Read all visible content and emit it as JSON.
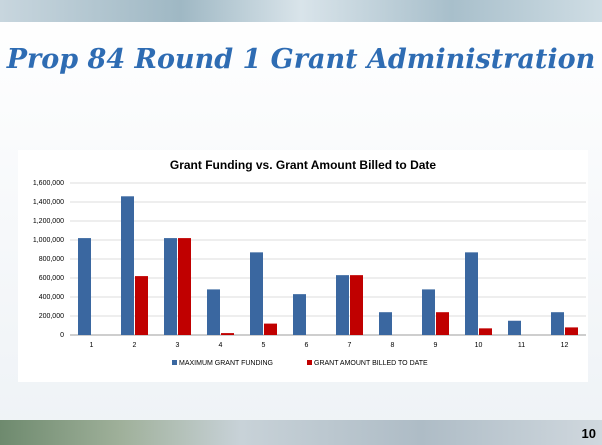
{
  "slide": {
    "title": "Prop 84 Round 1 Grant Administration",
    "page_number": 10
  },
  "chart_data": {
    "type": "bar",
    "title": "Grant Funding vs. Grant Amount  Billed to Date",
    "categories": [
      "1",
      "2",
      "3",
      "4",
      "5",
      "6",
      "7",
      "8",
      "9",
      "10",
      "11",
      "12"
    ],
    "series": [
      {
        "name": "MAXIMUM GRANT FUNDING",
        "color": "#3a67a0",
        "values": [
          1020000,
          1460000,
          1020000,
          480000,
          870000,
          430000,
          630000,
          240000,
          480000,
          870000,
          150000,
          240000
        ]
      },
      {
        "name": "GRANT AMOUNT BILLED TO DATE",
        "color": "#c00000",
        "values": [
          0,
          620000,
          1020000,
          20000,
          120000,
          0,
          630000,
          0,
          240000,
          70000,
          0,
          80000
        ]
      }
    ],
    "ylim": [
      0,
      1600000
    ],
    "yticks": [
      0,
      {
        "value": 200000,
        "label": "200,000"
      },
      {
        "value": 400000,
        "label": "400,000"
      },
      {
        "value": 600000,
        "label": "600,000"
      },
      {
        "value": 800000,
        "label": "800,000"
      },
      {
        "value": 1000000,
        "label": "1,000,000"
      },
      {
        "value": 1200000,
        "label": "1,200,000"
      },
      {
        "value": 1400000,
        "label": "1,400,000"
      },
      {
        "value": 1600000,
        "label": "1,600,000"
      }
    ],
    "grid": true,
    "legend": "bottom"
  }
}
